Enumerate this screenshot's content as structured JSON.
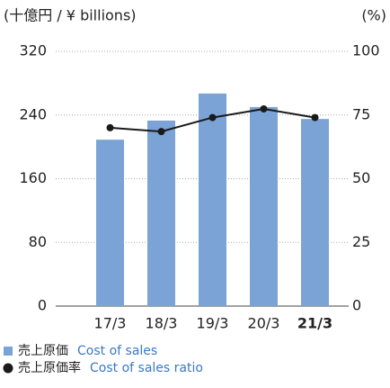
{
  "chart_data": {
    "type": "bar_line",
    "y_label": "(十億円 / ¥ billions)",
    "y2_label": "(%)",
    "categories": [
      "17/3",
      "18/3",
      "19/3",
      "20/3",
      "21/3"
    ],
    "series": [
      {
        "name": "売上原価",
        "name_en": "Cost of sales",
        "type": "bar",
        "color": "#7ba3d6",
        "values": [
          209,
          233,
          267,
          250,
          235
        ]
      },
      {
        "name": "売上原価率",
        "name_en": "Cost of sales ratio",
        "type": "line",
        "axis": "y2",
        "color": "#1a1a1a",
        "values": [
          70,
          68.5,
          74,
          77.4,
          74
        ]
      }
    ],
    "ylim": [
      0,
      320
    ],
    "yticks": [
      0,
      80,
      160,
      240,
      320
    ],
    "y2lim": [
      0,
      100
    ],
    "y2ticks": [
      0,
      25,
      50,
      75,
      100
    ],
    "grid": true,
    "legend_text_color": "#3a78c8"
  }
}
